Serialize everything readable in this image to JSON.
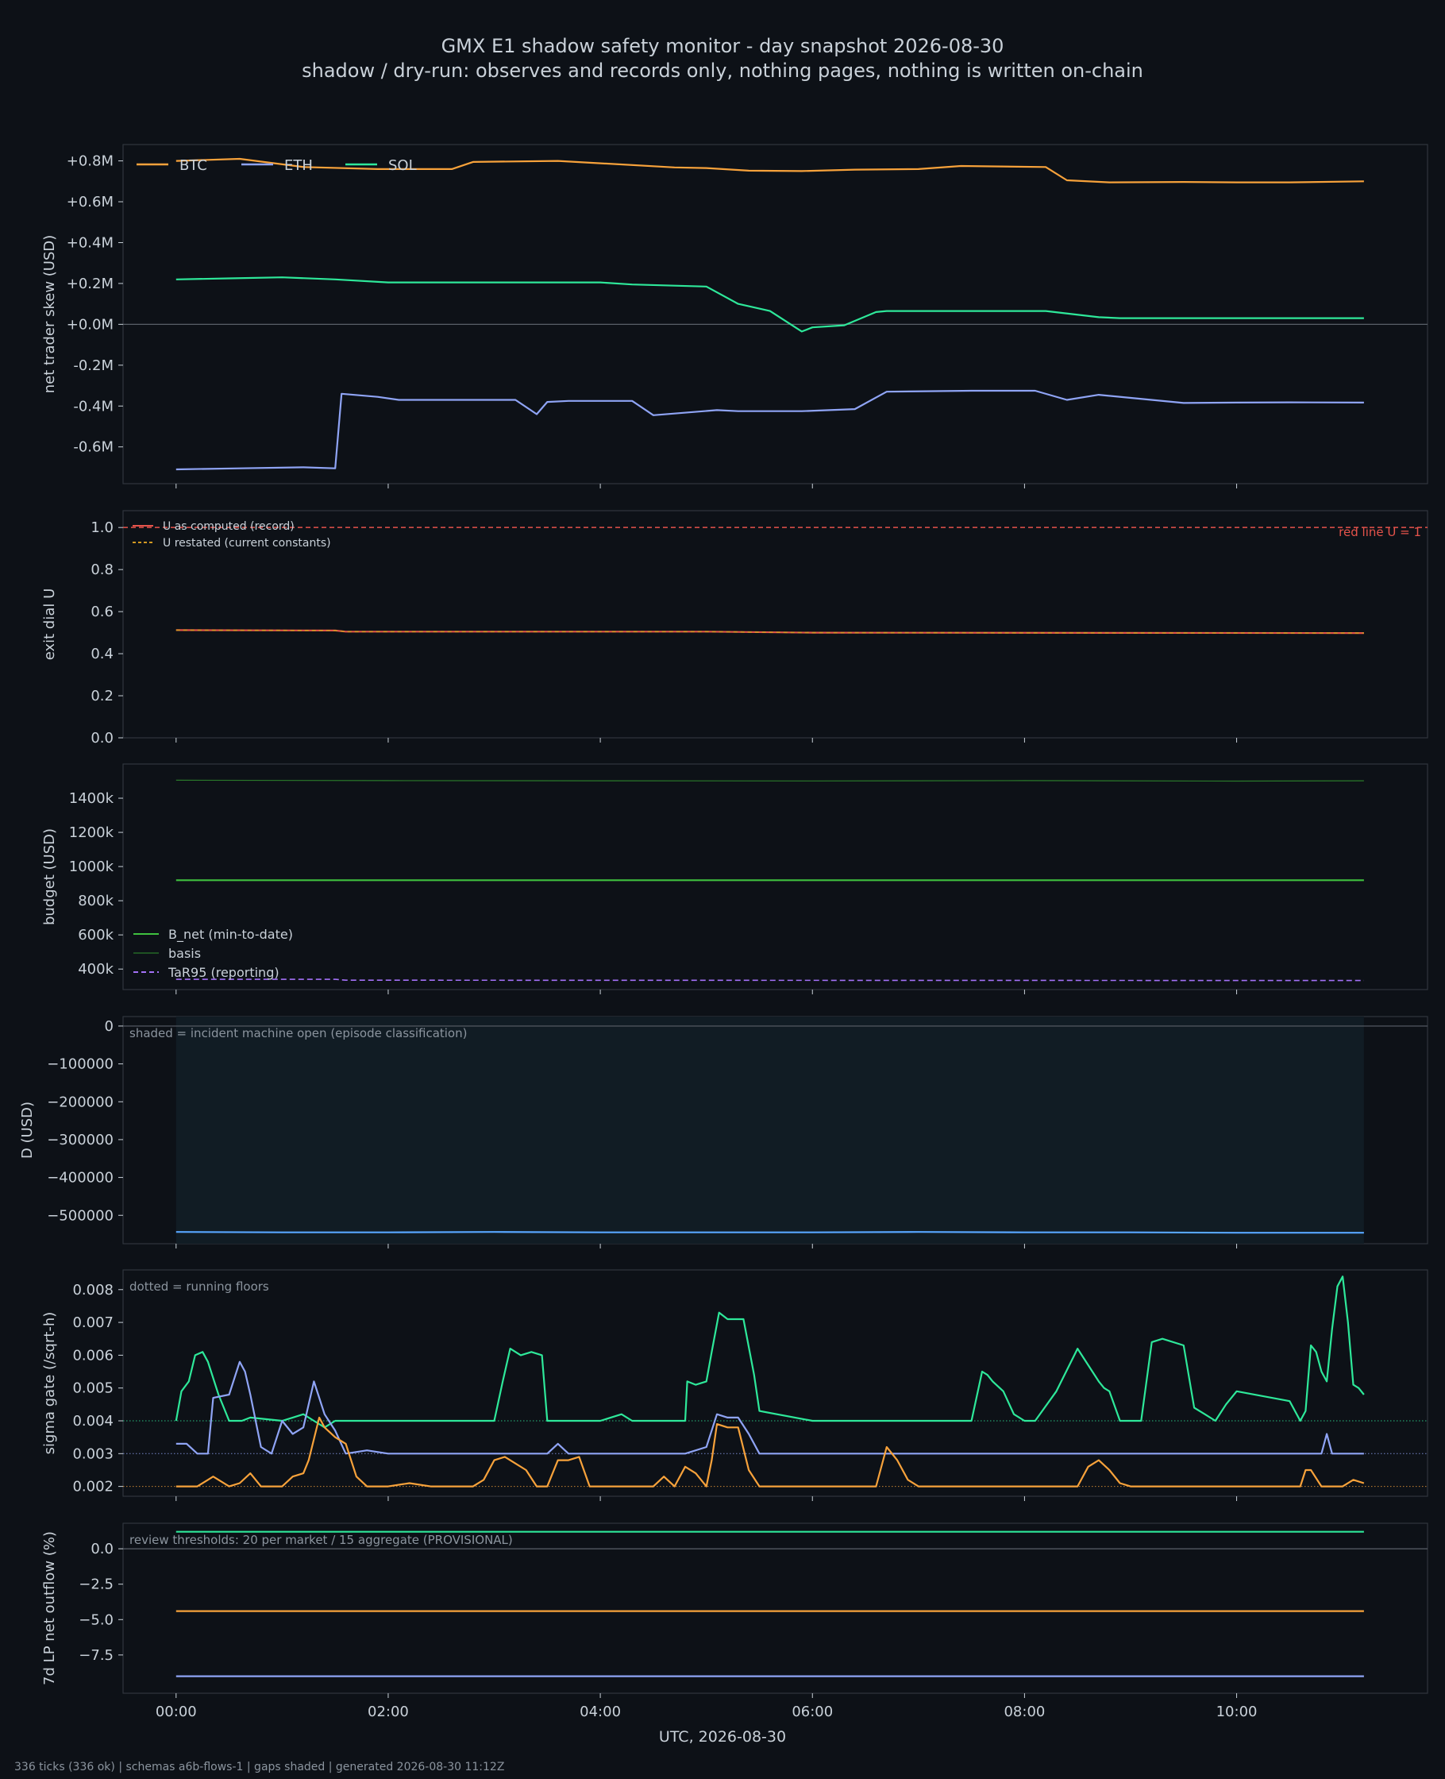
{
  "page": {
    "title": "GMX E1 shadow safety monitor - day snapshot 2026-08-30",
    "subtitle": "shadow / dry-run: observes and records only, nothing pages, nothing is written on-chain",
    "footer": "336 ticks (336 ok) | schemas a6b-flows-1 | gaps shaded | generated 2026-08-30 11:12Z",
    "xlabel": "UTC, 2026-08-30"
  },
  "colors": {
    "background": "#0d1117",
    "panel": "#0d1117",
    "frame": "#30363d",
    "text": "#c9d1d9",
    "muted": "#8b949e",
    "btc": "#f7a23b",
    "eth": "#8fa4f5",
    "sol": "#2ee89a",
    "redline": "#e5534b",
    "u_record": "#e5534b",
    "u_restated": "#d29922",
    "bnet": "#3fc13f",
    "basis": "#2a7a2a",
    "tar": "#a371f7",
    "d": "#58a6ff",
    "shade": "#111c24"
  },
  "chart_data": [
    {
      "type": "line",
      "id": "skew",
      "ylabel": "net trader skew (USD)",
      "ylim": [
        -780000,
        880000
      ],
      "yticks": [
        -600000,
        -400000,
        -200000,
        0,
        200000,
        400000,
        600000,
        800000
      ],
      "ytick_labels": [
        "-0.6M",
        "-0.4M",
        "-0.2M",
        "+0.0M",
        "+0.2M",
        "+0.4M",
        "+0.6M",
        "+0.8M"
      ],
      "zero_line": 0,
      "legend": "top-left",
      "legend_entries": [
        "BTC",
        "ETH",
        "SOL"
      ],
      "series": [
        {
          "name": "BTC",
          "color_key": "btc",
          "x": [
            0,
            0.6,
            1.2,
            1.9,
            2.6,
            2.8,
            3.6,
            4.7,
            5.0,
            5.4,
            5.9,
            6.4,
            7.0,
            7.4,
            8.2,
            8.4,
            8.8,
            9.5,
            10.0,
            10.5,
            11.2
          ],
          "y": [
            800000,
            810000,
            770000,
            760000,
            760000,
            795000,
            800000,
            768000,
            765000,
            752000,
            750000,
            757000,
            760000,
            775000,
            770000,
            705000,
            695000,
            697000,
            695000,
            695000,
            700000
          ]
        },
        {
          "name": "ETH",
          "color_key": "eth",
          "x": [
            0,
            0.6,
            1.2,
            1.5,
            1.56,
            1.9,
            2.1,
            3.2,
            3.4,
            3.5,
            3.7,
            4.3,
            4.5,
            5.1,
            5.3,
            5.9,
            6.4,
            6.7,
            7.5,
            8.1,
            8.4,
            8.7,
            9.5,
            10.0,
            10.5,
            11.2
          ],
          "y": [
            -710000,
            -705000,
            -700000,
            -705000,
            -340000,
            -355000,
            -370000,
            -370000,
            -440000,
            -380000,
            -375000,
            -375000,
            -445000,
            -420000,
            -425000,
            -425000,
            -415000,
            -330000,
            -325000,
            -325000,
            -370000,
            -345000,
            -385000,
            -383000,
            -382000,
            -383000
          ]
        },
        {
          "name": "SOL",
          "color_key": "sol",
          "x": [
            0,
            0.5,
            1.0,
            1.5,
            2.0,
            3.0,
            4.0,
            4.3,
            5.0,
            5.3,
            5.6,
            5.9,
            6.0,
            6.3,
            6.6,
            6.7,
            7.5,
            8.2,
            8.7,
            8.9,
            9.5,
            10.0,
            10.5,
            11.2
          ],
          "y": [
            220000,
            225000,
            230000,
            220000,
            205000,
            205000,
            205000,
            195000,
            185000,
            100000,
            65000,
            -35000,
            -15000,
            -5000,
            60000,
            65000,
            65000,
            65000,
            35000,
            30000,
            30000,
            30000,
            30000,
            30000
          ]
        }
      ]
    },
    {
      "type": "line",
      "id": "exit",
      "ylabel": "exit dial U",
      "ylim": [
        0,
        1.08
      ],
      "yticks": [
        0.0,
        0.2,
        0.4,
        0.6,
        0.8,
        1.0
      ],
      "ytick_labels": [
        "0.0",
        "0.2",
        "0.4",
        "0.6",
        "0.8",
        "1.0"
      ],
      "redline_value": 1.0,
      "redline_label": "red line U = 1",
      "legend": "top-left",
      "legend_entries": [
        "U as computed (record)",
        "U restated (current constants)"
      ],
      "series": [
        {
          "name": "U as computed (record)",
          "color_key": "u_record",
          "x": [
            0,
            1.5,
            1.6,
            5.0,
            6.0,
            11.2
          ],
          "y": [
            0.512,
            0.51,
            0.505,
            0.505,
            0.5,
            0.498
          ]
        },
        {
          "name": "U restated (current constants)",
          "color_key": "u_restated",
          "x": [
            0,
            1.5,
            1.6,
            5.0,
            6.0,
            11.2
          ],
          "y": [
            0.512,
            0.51,
            0.505,
            0.505,
            0.5,
            0.498
          ]
        }
      ]
    },
    {
      "type": "line",
      "id": "budget",
      "ylabel": "budget (USD)",
      "ylim": [
        280000,
        1600000
      ],
      "yticks": [
        400000,
        600000,
        800000,
        1000000,
        1200000,
        1400000
      ],
      "ytick_labels": [
        "400k",
        "600k",
        "800k",
        "1000k",
        "1200k",
        "1400k"
      ],
      "legend": "bottom-left",
      "legend_entries": [
        "B_net (min-to-date)",
        "basis",
        "TaR95 (reporting)"
      ],
      "series": [
        {
          "name": "B_net (min-to-date)",
          "color_key": "bnet",
          "x": [
            0,
            11.2
          ],
          "y": [
            920000,
            920000
          ]
        },
        {
          "name": "basis",
          "color_key": "basis",
          "x": [
            0,
            2,
            4,
            6,
            8,
            10,
            11.2
          ],
          "y": [
            1505000,
            1503000,
            1502000,
            1501000,
            1503000,
            1500000,
            1502000
          ]
        },
        {
          "name": "TaR95 (reporting)",
          "color_key": "tar",
          "x": [
            0,
            1.5,
            1.6,
            11.2
          ],
          "y": [
            340000,
            340000,
            335000,
            333000
          ]
        }
      ]
    },
    {
      "type": "line",
      "id": "D",
      "ylabel": "D (USD)",
      "ylim": [
        -575000,
        25000
      ],
      "yticks": [
        -500000,
        -400000,
        -300000,
        -200000,
        -100000,
        0
      ],
      "ytick_labels": [
        "−500000",
        "−400000",
        "−300000",
        "−200000",
        "−100000",
        "0"
      ],
      "zero_line": 0,
      "annotation": "shaded = incident machine open (episode classification)",
      "shaded_range_x": [
        0,
        11.2
      ],
      "series": [
        {
          "name": "D",
          "color_key": "d",
          "x": [
            0,
            1,
            2,
            3,
            4,
            5,
            6,
            7,
            8,
            9,
            10,
            11.2
          ],
          "y": [
            -544000,
            -545000,
            -545000,
            -544000,
            -545000,
            -545000,
            -545000,
            -544000,
            -545000,
            -545000,
            -546000,
            -546000
          ]
        }
      ]
    },
    {
      "type": "line",
      "id": "sigma",
      "ylabel": "sigma gate (/sqrt-h)",
      "ylim": [
        0.0017,
        0.0086
      ],
      "yticks": [
        0.002,
        0.003,
        0.004,
        0.005,
        0.006,
        0.007,
        0.008
      ],
      "ytick_labels": [
        "0.002",
        "0.003",
        "0.004",
        "0.005",
        "0.006",
        "0.007",
        "0.008"
      ],
      "annotation": "dotted = running floors",
      "floors": [
        {
          "color_key": "sol",
          "value": 0.004
        },
        {
          "color_key": "eth",
          "value": 0.003
        },
        {
          "color_key": "btc",
          "value": 0.002
        }
      ],
      "series": [
        {
          "name": "SOL",
          "color_key": "sol",
          "x": [
            0,
            0.05,
            0.12,
            0.18,
            0.25,
            0.3,
            0.4,
            0.5,
            0.55,
            0.62,
            0.7,
            1.0,
            1.1,
            1.2,
            1.3,
            1.4,
            1.5,
            3.0,
            3.08,
            3.15,
            3.25,
            3.35,
            3.45,
            3.5,
            4.0,
            4.2,
            4.3,
            4.8,
            4.82,
            4.9,
            5.0,
            5.05,
            5.12,
            5.2,
            5.3,
            5.35,
            5.45,
            5.5,
            6.0,
            6.1,
            6.2,
            6.3,
            6.4,
            6.5,
            6.7,
            6.9,
            7.0,
            7.5,
            7.6,
            7.65,
            7.7,
            7.8,
            7.9,
            8.0,
            8.1,
            8.3,
            8.5,
            8.7,
            8.75,
            8.8,
            8.9,
            9.0,
            9.1,
            9.2,
            9.3,
            9.5,
            9.6,
            9.7,
            9.8,
            9.9,
            10.0,
            10.5,
            10.6,
            10.65,
            10.7,
            10.75,
            10.8,
            10.85,
            10.9,
            10.95,
            11.0,
            11.05,
            11.1,
            11.15,
            11.2
          ],
          "y": [
            0.004,
            0.0049,
            0.0052,
            0.006,
            0.0061,
            0.0058,
            0.0048,
            0.004,
            0.004,
            0.004,
            0.0041,
            0.004,
            0.0041,
            0.0042,
            0.004,
            0.0038,
            0.004,
            0.004,
            0.0052,
            0.0062,
            0.006,
            0.0061,
            0.006,
            0.004,
            0.004,
            0.0042,
            0.004,
            0.004,
            0.0052,
            0.0051,
            0.0052,
            0.0061,
            0.0073,
            0.0071,
            0.0071,
            0.0071,
            0.0054,
            0.0043,
            0.004,
            0.004,
            0.004,
            0.004,
            0.004,
            0.004,
            0.004,
            0.004,
            0.004,
            0.004,
            0.0055,
            0.0054,
            0.0052,
            0.0049,
            0.0042,
            0.004,
            0.004,
            0.0049,
            0.0062,
            0.0052,
            0.005,
            0.0049,
            0.004,
            0.004,
            0.004,
            0.0064,
            0.0065,
            0.0063,
            0.0044,
            0.0042,
            0.004,
            0.0045,
            0.0049,
            0.0046,
            0.004,
            0.0043,
            0.0063,
            0.0061,
            0.0055,
            0.0052,
            0.0068,
            0.0081,
            0.0084,
            0.007,
            0.0051,
            0.005,
            0.0048
          ]
        },
        {
          "name": "ETH",
          "color_key": "eth",
          "x": [
            0,
            0.1,
            0.2,
            0.3,
            0.35,
            0.5,
            0.6,
            0.65,
            0.7,
            0.8,
            0.9,
            1.0,
            1.1,
            1.2,
            1.3,
            1.4,
            1.5,
            1.6,
            1.8,
            2.0,
            3.0,
            3.5,
            3.6,
            3.7,
            4.8,
            5.0,
            5.1,
            5.2,
            5.3,
            5.4,
            5.5,
            6.0,
            10.0,
            10.8,
            10.85,
            10.9,
            11.2
          ],
          "y": [
            0.0033,
            0.0033,
            0.003,
            0.003,
            0.0047,
            0.0048,
            0.0058,
            0.0055,
            0.0048,
            0.0032,
            0.003,
            0.004,
            0.0036,
            0.0038,
            0.0052,
            0.0042,
            0.0037,
            0.003,
            0.0031,
            0.003,
            0.003,
            0.003,
            0.0033,
            0.003,
            0.003,
            0.0032,
            0.0042,
            0.0041,
            0.0041,
            0.0036,
            0.003,
            0.003,
            0.003,
            0.003,
            0.0036,
            0.003,
            0.003
          ]
        },
        {
          "name": "BTC",
          "color_key": "btc",
          "x": [
            0,
            0.2,
            0.3,
            0.35,
            0.4,
            0.5,
            0.6,
            0.7,
            0.8,
            0.9,
            1.0,
            1.1,
            1.2,
            1.25,
            1.35,
            1.4,
            1.5,
            1.6,
            1.7,
            1.8,
            2.0,
            2.2,
            2.4,
            2.6,
            2.8,
            2.9,
            3.0,
            3.1,
            3.2,
            3.3,
            3.4,
            3.5,
            3.6,
            3.7,
            3.8,
            3.9,
            4.0,
            4.5,
            4.6,
            4.7,
            4.8,
            4.9,
            5.0,
            5.05,
            5.1,
            5.2,
            5.3,
            5.4,
            5.5,
            6.0,
            6.6,
            6.7,
            6.8,
            6.9,
            7.0,
            7.5,
            8.0,
            8.5,
            8.6,
            8.7,
            8.8,
            8.9,
            9.0,
            10.5,
            10.6,
            10.65,
            10.7,
            10.8,
            11.0,
            11.1,
            11.2
          ],
          "y": [
            0.002,
            0.002,
            0.0022,
            0.0023,
            0.0022,
            0.002,
            0.0021,
            0.0024,
            0.002,
            0.002,
            0.002,
            0.0023,
            0.0024,
            0.0028,
            0.0041,
            0.0038,
            0.0035,
            0.0033,
            0.0023,
            0.002,
            0.002,
            0.0021,
            0.002,
            0.002,
            0.002,
            0.0022,
            0.0028,
            0.0029,
            0.0027,
            0.0025,
            0.002,
            0.002,
            0.0028,
            0.0028,
            0.0029,
            0.002,
            0.002,
            0.002,
            0.0023,
            0.002,
            0.0026,
            0.0024,
            0.002,
            0.0028,
            0.0039,
            0.0038,
            0.0038,
            0.0025,
            0.002,
            0.002,
            0.002,
            0.0032,
            0.0028,
            0.0022,
            0.002,
            0.002,
            0.002,
            0.002,
            0.0026,
            0.0028,
            0.0025,
            0.0021,
            0.002,
            0.002,
            0.002,
            0.0025,
            0.0025,
            0.002,
            0.002,
            0.0022,
            0.0021
          ]
        }
      ]
    },
    {
      "type": "line",
      "id": "lp",
      "ylabel": "7d LP net outflow (%)",
      "ylim": [
        -10.2,
        1.8
      ],
      "yticks": [
        -7.5,
        -5.0,
        -2.5,
        0.0
      ],
      "ytick_labels": [
        "−7.5",
        "−5.0",
        "−2.5",
        "0.0"
      ],
      "zero_line": 0,
      "annotation": "review thresholds: 20 per market / 15 aggregate (PROVISIONAL)",
      "xlabel": "UTC, 2026-08-30",
      "xticks": [
        0,
        2,
        4,
        6,
        8,
        10
      ],
      "xtick_labels": [
        "00:00",
        "02:00",
        "04:00",
        "06:00",
        "08:00",
        "10:00"
      ],
      "xlim": [
        -0.5,
        11.8
      ],
      "series": [
        {
          "name": "SOL",
          "color_key": "sol",
          "x": [
            0,
            11.2
          ],
          "y": [
            1.2,
            1.2
          ]
        },
        {
          "name": "BTC",
          "color_key": "btc",
          "x": [
            0,
            11.2
          ],
          "y": [
            -4.4,
            -4.4
          ]
        },
        {
          "name": "ETH",
          "color_key": "eth",
          "x": [
            0,
            11.2
          ],
          "y": [
            -9.0,
            -9.0
          ]
        }
      ]
    }
  ]
}
